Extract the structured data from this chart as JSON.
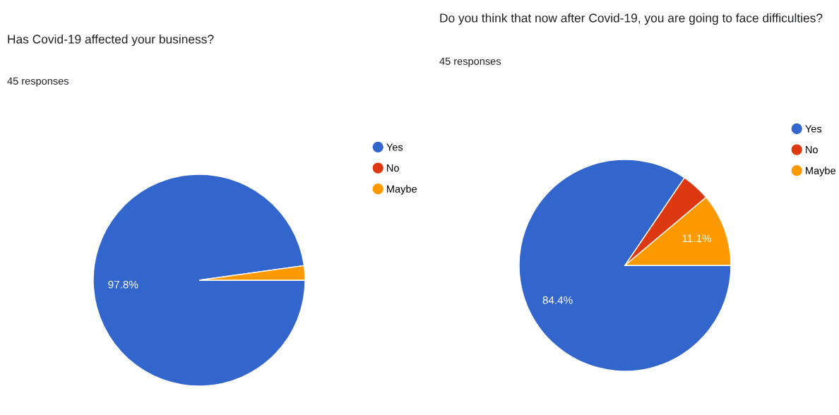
{
  "chart_data": [
    {
      "type": "pie",
      "title": "Has Covid-19 affected your business?",
      "subtitle": "45 responses",
      "categories": [
        "Yes",
        "No",
        "Maybe"
      ],
      "values": [
        97.8,
        0,
        2.2
      ],
      "colors": [
        "#3366cc",
        "#dc3912",
        "#ff9900"
      ],
      "value_labels": [
        "97.8%",
        null,
        null
      ],
      "legend": "right"
    },
    {
      "type": "pie",
      "title": "Do you think that now after Covid-19, you are going to face difficulties?",
      "subtitle": "45 responses",
      "categories": [
        "Yes",
        "No",
        "Maybe"
      ],
      "values": [
        84.4,
        4.4,
        11.1
      ],
      "colors": [
        "#3366cc",
        "#dc3912",
        "#ff9900"
      ],
      "value_labels": [
        "84.4%",
        null,
        "11.1%"
      ],
      "legend": "right"
    }
  ]
}
